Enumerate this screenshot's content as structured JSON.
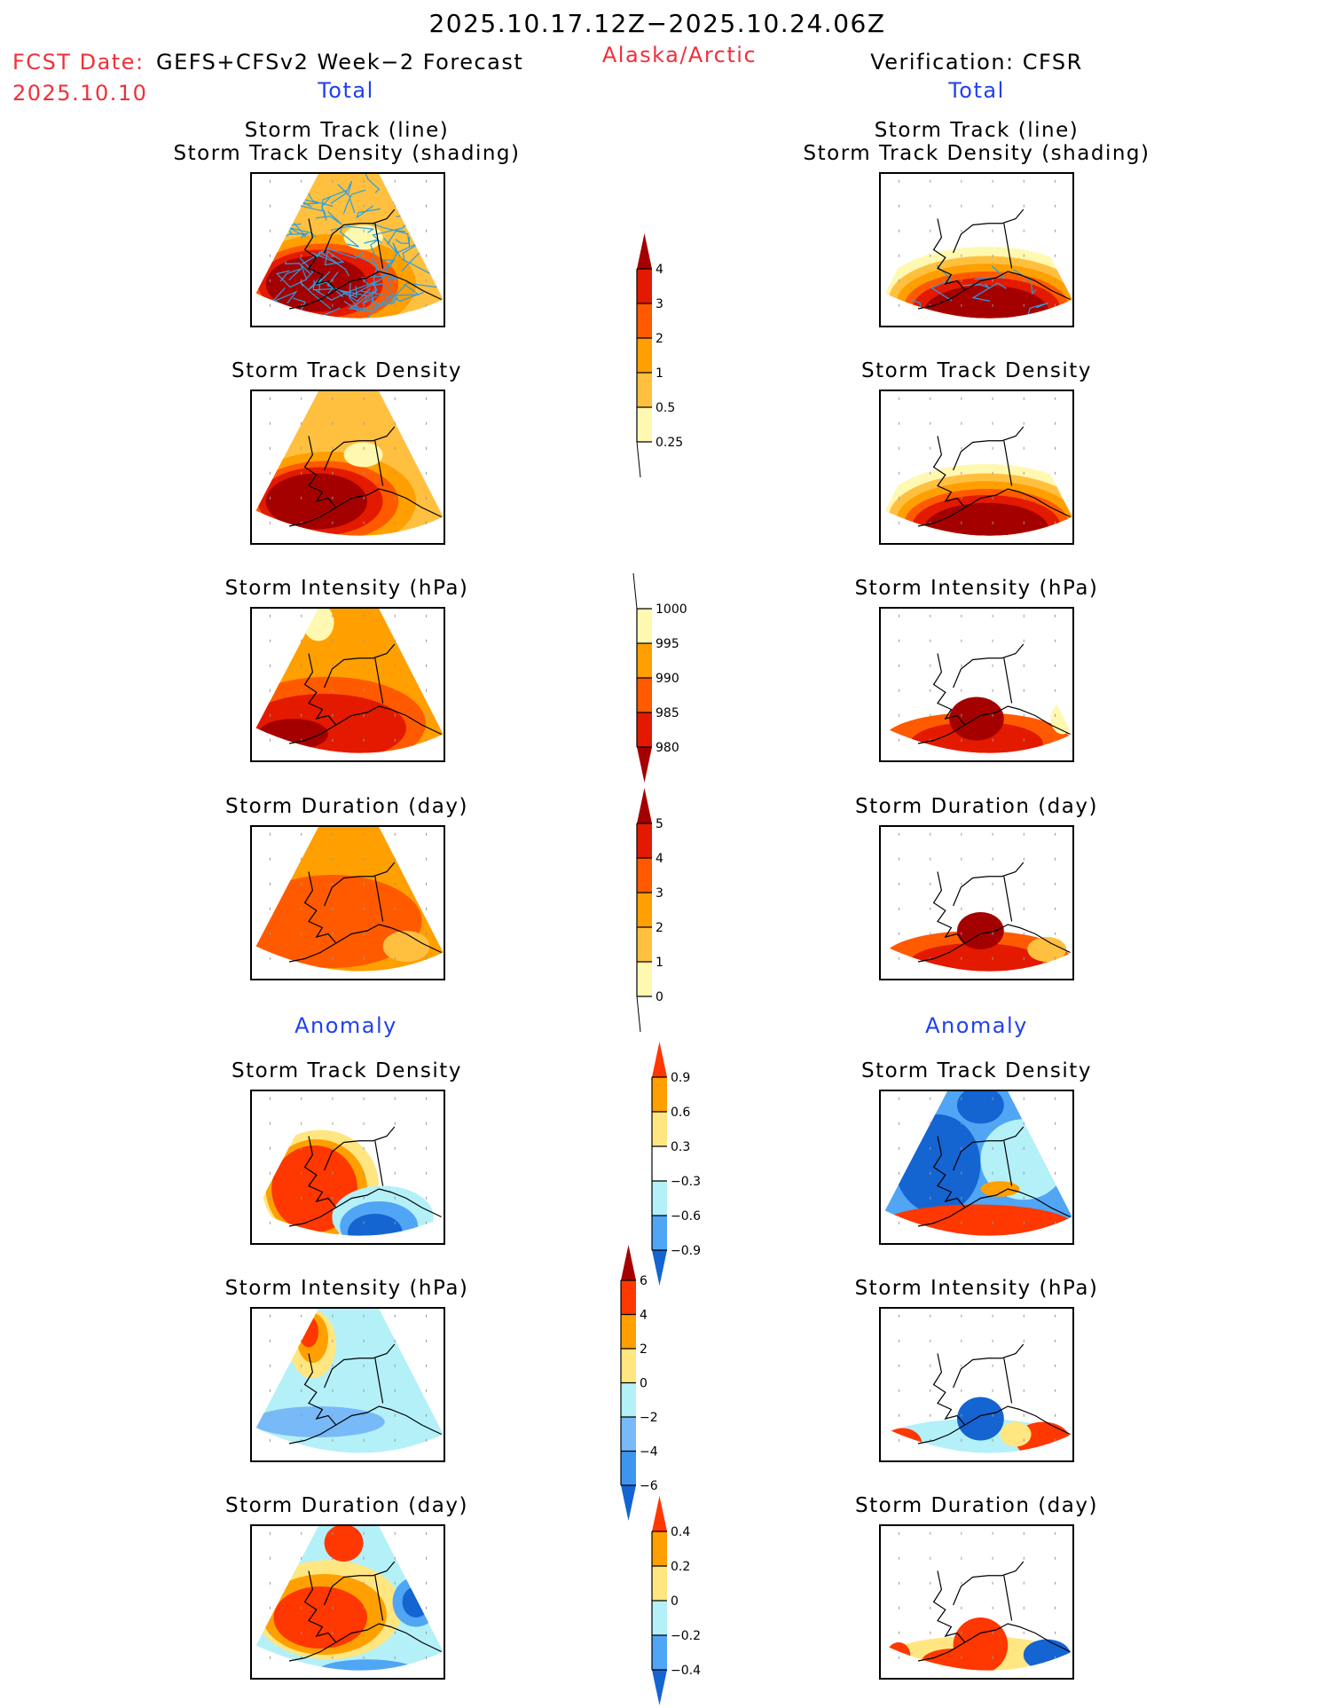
{
  "header": {
    "period": "2025.10.17.12Z−2025.10.24.06Z",
    "fcst_date_label": "FCST Date:",
    "fcst_model": "GEFS+CFSv2 Week−2 Forecast",
    "fcst_date": "2025.10.10",
    "region": "Alaska/Arctic",
    "verification": "Verification: CFSR",
    "left_section_total": "Total",
    "right_section_total": "Total",
    "left_section_anomaly": "Anomaly",
    "right_section_anomaly": "Anomaly"
  },
  "colors": {
    "title_red": "#f0303a",
    "section_blue": "#2040f0",
    "track_line": "#2a9fe0"
  },
  "chart_data": [
    {
      "type": "heatmap",
      "title": "Storm Track (line) / Storm Track Density (shading)",
      "column": "forecast",
      "section": "Total",
      "colorbar": "density",
      "has_track_lines": true,
      "summary": "Max density (>4) over Bering Sea / Aleutians / Gulf of Alaska; 1-2 over interior; dense tracks in southwest"
    },
    {
      "type": "heatmap",
      "title": "Storm Track (line) / Storm Track Density (shading)",
      "column": "verification",
      "section": "Total",
      "colorbar": "density",
      "has_track_lines": true,
      "summary": "Max density (>4) south of Alaska; none over northern Alaska/Arctic"
    },
    {
      "type": "heatmap",
      "title": "Storm Track Density",
      "column": "forecast",
      "section": "Total",
      "colorbar": "density"
    },
    {
      "type": "heatmap",
      "title": "Storm Track Density",
      "column": "verification",
      "section": "Total",
      "colorbar": "density"
    },
    {
      "type": "heatmap",
      "title": "Storm Intensity (hPa)",
      "column": "forecast",
      "section": "Total",
      "colorbar": "intensity"
    },
    {
      "type": "heatmap",
      "title": "Storm Intensity (hPa)",
      "column": "verification",
      "section": "Total",
      "colorbar": "intensity"
    },
    {
      "type": "heatmap",
      "title": "Storm Duration (day)",
      "column": "forecast",
      "section": "Total",
      "colorbar": "duration"
    },
    {
      "type": "heatmap",
      "title": "Storm Duration (day)",
      "column": "verification",
      "section": "Total",
      "colorbar": "duration"
    },
    {
      "type": "heatmap",
      "title": "Storm Track Density",
      "column": "forecast",
      "section": "Anomaly",
      "colorbar": "density_anom"
    },
    {
      "type": "heatmap",
      "title": "Storm Track Density",
      "column": "verification",
      "section": "Anomaly",
      "colorbar": "density_anom"
    },
    {
      "type": "heatmap",
      "title": "Storm Intensity (hPa)",
      "column": "forecast",
      "section": "Anomaly",
      "colorbar": "intensity_anom"
    },
    {
      "type": "heatmap",
      "title": "Storm Intensity (hPa)",
      "column": "verification",
      "section": "Anomaly",
      "colorbar": "intensity_anom"
    },
    {
      "type": "heatmap",
      "title": "Storm Duration (day)",
      "column": "forecast",
      "section": "Anomaly",
      "colorbar": "duration_anom"
    },
    {
      "type": "heatmap",
      "title": "Storm Duration (day)",
      "column": "verification",
      "section": "Anomaly",
      "colorbar": "duration_anom"
    }
  ],
  "colorbars": {
    "density": {
      "labels": [
        "0.25",
        "0.5",
        "1",
        "2",
        "3",
        "4"
      ],
      "colors": [
        "#fff8b0",
        "#ffc040",
        "#ff9f00",
        "#ff5a00",
        "#e31a00"
      ],
      "over": "#a50000",
      "under": null
    },
    "intensity": {
      "labels": [
        "980",
        "985",
        "990",
        "995",
        "1000"
      ],
      "colors": [
        "#e31a00",
        "#ff5a00",
        "#ff9f00",
        "#fff8b0"
      ],
      "under": "#a50000",
      "over": null
    },
    "duration": {
      "labels": [
        "0",
        "1",
        "2",
        "3",
        "4",
        "5"
      ],
      "colors": [
        "#fff8b0",
        "#ffc040",
        "#ff9f00",
        "#ff5a00",
        "#e31a00"
      ],
      "over": "#a50000",
      "under": null
    },
    "density_anom": {
      "labels": [
        "−0.9",
        "−0.6",
        "−0.3",
        "0.3",
        "0.6",
        "0.9"
      ],
      "colors": [
        "#50a5f5",
        "#b4f0f8",
        "#ffffff",
        "#ffe680",
        "#ffa000"
      ],
      "over": "#ff3700",
      "under": "#1464d2"
    },
    "intensity_anom": {
      "labels": [
        "−6",
        "−4",
        "−2",
        "0",
        "2",
        "4",
        "6"
      ],
      "colors": [
        "#3c96f0",
        "#78b9f8",
        "#b4f0f8",
        "#ffe680",
        "#ffa000",
        "#ff3700"
      ],
      "over": "#a50000",
      "under": "#1464d2"
    },
    "duration_anom": {
      "labels": [
        "−0.4",
        "−0.2",
        "0",
        "0.2",
        "0.4"
      ],
      "colors": [
        "#50a5f5",
        "#b4f0f8",
        "#ffe680",
        "#ffa000"
      ],
      "over": "#ff3700",
      "under": "#1464d2"
    }
  }
}
